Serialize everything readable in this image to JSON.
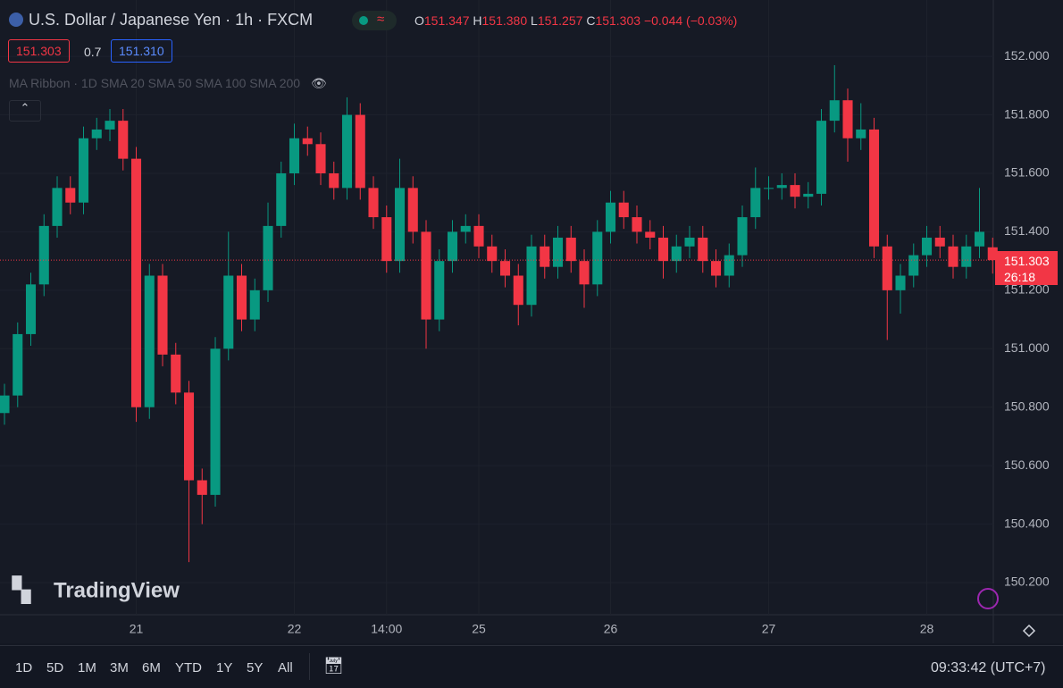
{
  "header": {
    "symbol": "U.S. Dollar / Japanese Yen · 1h · FXCM",
    "o_label": "O",
    "open": "151.347",
    "h_label": "H",
    "high": "151.380",
    "l_label": "L",
    "low": "151.257",
    "c_label": "C",
    "close": "151.303",
    "change": "−0.044 (−0.03%)",
    "sell": "151.303",
    "spread": "0.7",
    "buy": "151.310",
    "indicator": "MA Ribbon · 1D SMA 20 SMA 50 SMA 100 SMA 200",
    "watermark": "TradingView",
    "price_tag": "151.303",
    "countdown": "26:18"
  },
  "chart_data": {
    "type": "candlestick",
    "up_color": "#089981",
    "down_color": "#f23645",
    "grid": true,
    "xlim": [
      -0.34,
      75.05
    ],
    "ylim": [
      150.09,
      152.193
    ],
    "xticks": [
      {
        "value": 10,
        "label": "21"
      },
      {
        "value": 22,
        "label": "22"
      },
      {
        "value": 29,
        "label": "14:00"
      },
      {
        "value": 36,
        "label": "25"
      },
      {
        "value": 46,
        "label": "26"
      },
      {
        "value": 58,
        "label": "27"
      },
      {
        "value": 70,
        "label": "28"
      }
    ],
    "yticks": [
      {
        "value": 150.2,
        "label": "150.200"
      },
      {
        "value": 150.4,
        "label": "150.400"
      },
      {
        "value": 150.6,
        "label": "150.600"
      },
      {
        "value": 150.8,
        "label": "150.800"
      },
      {
        "value": 151,
        "label": "151.000"
      },
      {
        "value": 151.2,
        "label": "151.200"
      },
      {
        "value": 151.4,
        "label": "151.400"
      },
      {
        "value": 151.6,
        "label": "151.600"
      },
      {
        "value": 151.8,
        "label": "151.800"
      },
      {
        "value": 152,
        "label": "152.000"
      }
    ],
    "last_price": 151.303,
    "open": [
      150.78,
      150.84,
      151.05,
      151.22,
      151.42,
      151.55,
      151.5,
      151.72,
      151.75,
      151.78,
      151.65,
      150.8,
      151.25,
      150.98,
      150.85,
      150.55,
      150.5,
      151.0,
      151.25,
      151.1,
      151.2,
      151.42,
      151.6,
      151.72,
      151.7,
      151.6,
      151.55,
      151.8,
      151.55,
      151.45,
      151.3,
      151.55,
      151.4,
      151.1,
      151.3,
      151.4,
      151.42,
      151.35,
      151.3,
      151.25,
      151.15,
      151.35,
      151.28,
      151.38,
      151.3,
      151.22,
      151.4,
      151.5,
      151.45,
      151.4,
      151.38,
      151.3,
      151.35,
      151.38,
      151.3,
      151.25,
      151.32,
      151.45,
      151.55,
      151.55,
      151.56,
      151.52,
      151.53,
      151.78,
      151.85,
      151.72,
      151.75,
      151.35,
      151.2,
      151.25,
      151.32,
      151.38,
      151.35,
      151.28,
      151.35,
      151.347
    ],
    "high": [
      150.88,
      151.09,
      151.26,
      151.46,
      151.59,
      151.59,
      151.76,
      151.79,
      151.82,
      151.82,
      151.69,
      151.29,
      151.29,
      151.02,
      150.89,
      150.59,
      151.04,
      151.4,
      151.29,
      151.24,
      151.5,
      151.64,
      151.77,
      151.76,
      151.74,
      151.64,
      151.86,
      151.84,
      151.59,
      151.49,
      151.65,
      151.59,
      151.44,
      151.34,
      151.44,
      151.46,
      151.46,
      151.39,
      151.34,
      151.29,
      151.39,
      151.39,
      151.42,
      151.42,
      151.34,
      151.44,
      151.54,
      151.54,
      151.49,
      151.44,
      151.42,
      151.39,
      151.42,
      151.42,
      151.34,
      151.36,
      151.49,
      151.62,
      151.59,
      151.6,
      151.6,
      151.57,
      151.82,
      151.97,
      151.89,
      151.84,
      151.79,
      151.39,
      151.29,
      151.36,
      151.42,
      151.42,
      151.39,
      151.39,
      151.55,
      151.38
    ],
    "low": [
      150.74,
      150.8,
      151.01,
      151.18,
      151.38,
      151.46,
      151.46,
      151.68,
      151.71,
      151.61,
      150.75,
      150.76,
      150.94,
      150.81,
      150.27,
      150.4,
      150.46,
      150.96,
      151.06,
      151.06,
      151.16,
      151.38,
      151.56,
      151.66,
      151.56,
      151.51,
      151.51,
      151.51,
      151.41,
      151.26,
      151.26,
      151.36,
      151.0,
      151.06,
      151.26,
      151.36,
      151.31,
      151.26,
      151.21,
      151.08,
      151.11,
      151.24,
      151.24,
      151.26,
      151.14,
      151.18,
      151.36,
      151.41,
      151.36,
      151.34,
      151.24,
      151.26,
      151.31,
      151.26,
      151.21,
      151.21,
      151.28,
      151.41,
      151.51,
      151.51,
      151.48,
      151.48,
      151.49,
      151.74,
      151.64,
      151.68,
      151.31,
      151.03,
      151.12,
      151.21,
      151.28,
      151.31,
      151.24,
      151.24,
      151.31,
      151.257
    ],
    "close": [
      150.84,
      151.05,
      151.22,
      151.42,
      151.55,
      151.5,
      151.72,
      151.75,
      151.78,
      151.65,
      150.8,
      151.25,
      150.98,
      150.85,
      150.55,
      150.5,
      151.0,
      151.25,
      151.1,
      151.2,
      151.42,
      151.6,
      151.72,
      151.7,
      151.6,
      151.55,
      151.8,
      151.55,
      151.45,
      151.3,
      151.55,
      151.4,
      151.1,
      151.3,
      151.4,
      151.42,
      151.35,
      151.3,
      151.25,
      151.15,
      151.35,
      151.28,
      151.38,
      151.3,
      151.22,
      151.4,
      151.5,
      151.45,
      151.4,
      151.38,
      151.3,
      151.35,
      151.38,
      151.3,
      151.25,
      151.32,
      151.45,
      151.55,
      151.55,
      151.56,
      151.52,
      151.53,
      151.78,
      151.85,
      151.72,
      151.75,
      151.35,
      151.2,
      151.25,
      151.32,
      151.38,
      151.35,
      151.28,
      151.35,
      151.4,
      151.303
    ]
  },
  "toolbar": {
    "ranges": [
      "1D",
      "5D",
      "1M",
      "3M",
      "6M",
      "YTD",
      "1Y",
      "5Y",
      "All"
    ],
    "clock": "09:33:42 (UTC+7)"
  }
}
